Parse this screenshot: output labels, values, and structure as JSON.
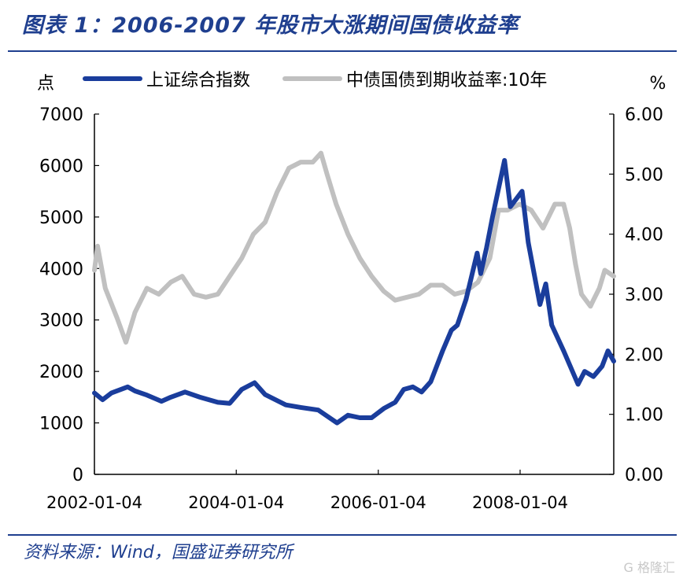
{
  "header": {
    "title": "图表 1：2006-2007 年股市大涨期间国债收益率"
  },
  "source": "资料来源：Wind，国盛证券研究所",
  "watermark": "G 格隆汇",
  "colors": {
    "accent": "#1f3f8f",
    "series_index": "#1a3d9c",
    "series_yield": "#c0c0c0"
  },
  "chart_data": {
    "type": "line",
    "left_unit": "点",
    "right_unit": "%",
    "x_ticks": [
      "2002-01-04",
      "2004-01-04",
      "2006-01-04",
      "2008-01-04"
    ],
    "x_range": [
      "2002-01-04",
      "2009-04-30"
    ],
    "y_left": {
      "range": [
        0,
        7000
      ],
      "ticks": [
        "0",
        "1000",
        "2000",
        "3000",
        "4000",
        "5000",
        "6000",
        "7000"
      ]
    },
    "y_right": {
      "range": [
        0,
        6
      ],
      "ticks": [
        "0.00",
        "1.00",
        "2.00",
        "3.00",
        "4.00",
        "5.00",
        "6.00"
      ]
    },
    "legend_position": "top",
    "grid": false,
    "series": [
      {
        "name": "上证综合指数",
        "axis": "left",
        "points": [
          [
            "2002-01-04",
            1580
          ],
          [
            "2002-02-15",
            1450
          ],
          [
            "2002-04-01",
            1580
          ],
          [
            "2002-06-24",
            1700
          ],
          [
            "2002-08-01",
            1620
          ],
          [
            "2002-10-01",
            1540
          ],
          [
            "2002-12-15",
            1420
          ],
          [
            "2003-02-01",
            1500
          ],
          [
            "2003-04-15",
            1600
          ],
          [
            "2003-07-01",
            1500
          ],
          [
            "2003-10-01",
            1400
          ],
          [
            "2003-12-01",
            1380
          ],
          [
            "2004-02-01",
            1650
          ],
          [
            "2004-04-07",
            1780
          ],
          [
            "2004-06-01",
            1550
          ],
          [
            "2004-09-15",
            1350
          ],
          [
            "2004-12-01",
            1300
          ],
          [
            "2005-03-01",
            1250
          ],
          [
            "2005-06-06",
            1000
          ],
          [
            "2005-08-01",
            1150
          ],
          [
            "2005-10-01",
            1100
          ],
          [
            "2005-12-01",
            1100
          ],
          [
            "2006-02-01",
            1280
          ],
          [
            "2006-04-01",
            1400
          ],
          [
            "2006-05-15",
            1650
          ],
          [
            "2006-07-01",
            1700
          ],
          [
            "2006-08-15",
            1600
          ],
          [
            "2006-10-01",
            1800
          ],
          [
            "2006-12-01",
            2400
          ],
          [
            "2007-01-15",
            2800
          ],
          [
            "2007-02-15",
            2900
          ],
          [
            "2007-04-01",
            3400
          ],
          [
            "2007-05-28",
            4300
          ],
          [
            "2007-06-15",
            3900
          ],
          [
            "2007-07-15",
            4400
          ],
          [
            "2007-08-15",
            5000
          ],
          [
            "2007-10-16",
            6100
          ],
          [
            "2007-11-15",
            5200
          ],
          [
            "2008-01-14",
            5500
          ],
          [
            "2008-02-15",
            4500
          ],
          [
            "2008-04-15",
            3300
          ],
          [
            "2008-05-15",
            3700
          ],
          [
            "2008-06-15",
            2900
          ],
          [
            "2008-08-15",
            2400
          ],
          [
            "2008-10-28",
            1750
          ],
          [
            "2008-12-01",
            2000
          ],
          [
            "2009-01-15",
            1900
          ],
          [
            "2009-03-01",
            2100
          ],
          [
            "2009-03-31",
            2400
          ],
          [
            "2009-04-30",
            2200
          ]
        ]
      },
      {
        "name": "中债国债到期收益率:10年",
        "axis": "right",
        "points": [
          [
            "2002-01-04",
            3.4
          ],
          [
            "2002-01-20",
            3.8
          ],
          [
            "2002-03-01",
            3.1
          ],
          [
            "2002-05-01",
            2.6
          ],
          [
            "2002-06-15",
            2.2
          ],
          [
            "2002-08-01",
            2.7
          ],
          [
            "2002-10-01",
            3.1
          ],
          [
            "2002-12-01",
            3.0
          ],
          [
            "2003-02-01",
            3.2
          ],
          [
            "2003-04-01",
            3.3
          ],
          [
            "2003-06-01",
            3.0
          ],
          [
            "2003-08-01",
            2.95
          ],
          [
            "2003-10-01",
            3.0
          ],
          [
            "2003-12-01",
            3.3
          ],
          [
            "2004-02-01",
            3.6
          ],
          [
            "2004-04-01",
            4.0
          ],
          [
            "2004-06-01",
            4.2
          ],
          [
            "2004-08-01",
            4.7
          ],
          [
            "2004-10-01",
            5.1
          ],
          [
            "2004-12-01",
            5.2
          ],
          [
            "2005-02-01",
            5.2
          ],
          [
            "2005-03-15",
            5.35
          ],
          [
            "2005-04-15",
            5.0
          ],
          [
            "2005-06-01",
            4.5
          ],
          [
            "2005-08-01",
            4.0
          ],
          [
            "2005-10-01",
            3.6
          ],
          [
            "2005-12-01",
            3.3
          ],
          [
            "2006-02-01",
            3.05
          ],
          [
            "2006-04-01",
            2.9
          ],
          [
            "2006-06-01",
            2.95
          ],
          [
            "2006-08-01",
            3.0
          ],
          [
            "2006-10-01",
            3.15
          ],
          [
            "2006-12-01",
            3.15
          ],
          [
            "2007-02-01",
            3.0
          ],
          [
            "2007-04-01",
            3.05
          ],
          [
            "2007-06-01",
            3.2
          ],
          [
            "2007-08-01",
            3.6
          ],
          [
            "2007-09-15",
            4.4
          ],
          [
            "2007-11-01",
            4.4
          ],
          [
            "2008-01-01",
            4.5
          ],
          [
            "2008-03-01",
            4.4
          ],
          [
            "2008-05-01",
            4.1
          ],
          [
            "2008-07-01",
            4.5
          ],
          [
            "2008-08-15",
            4.5
          ],
          [
            "2008-09-15",
            4.1
          ],
          [
            "2008-10-15",
            3.5
          ],
          [
            "2008-11-15",
            3.0
          ],
          [
            "2008-12-31",
            2.8
          ],
          [
            "2009-01-15",
            2.9
          ],
          [
            "2009-02-15",
            3.1
          ],
          [
            "2009-03-15",
            3.4
          ],
          [
            "2009-04-30",
            3.3
          ]
        ]
      }
    ]
  }
}
